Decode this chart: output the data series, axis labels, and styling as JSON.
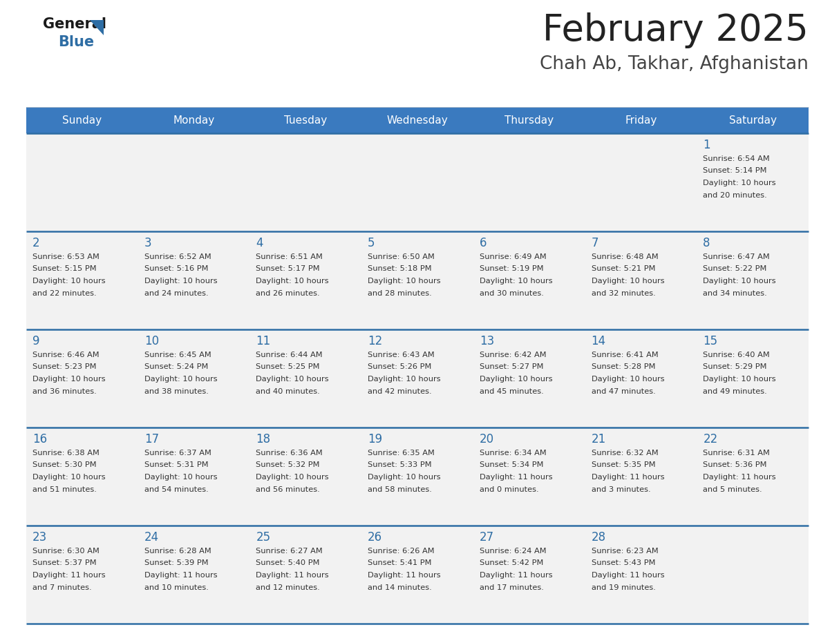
{
  "title": "February 2025",
  "subtitle": "Chah Ab, Takhar, Afghanistan",
  "header_bg": "#3a7abf",
  "header_text": "#ffffff",
  "day_names": [
    "Sunday",
    "Monday",
    "Tuesday",
    "Wednesday",
    "Thursday",
    "Friday",
    "Saturday"
  ],
  "title_color": "#222222",
  "subtitle_color": "#444444",
  "cell_bg": "#f2f2f2",
  "divider_color": "#2e6da4",
  "text_color": "#333333",
  "day_num_color": "#2e6da4",
  "logo_general_color": "#1a1a1a",
  "logo_blue_color": "#2e6da4",
  "logo_triangle_color": "#2e6da4",
  "calendar": [
    [
      {
        "day": null,
        "sunrise": null,
        "sunset": null,
        "daylight": null
      },
      {
        "day": null,
        "sunrise": null,
        "sunset": null,
        "daylight": null
      },
      {
        "day": null,
        "sunrise": null,
        "sunset": null,
        "daylight": null
      },
      {
        "day": null,
        "sunrise": null,
        "sunset": null,
        "daylight": null
      },
      {
        "day": null,
        "sunrise": null,
        "sunset": null,
        "daylight": null
      },
      {
        "day": null,
        "sunrise": null,
        "sunset": null,
        "daylight": null
      },
      {
        "day": 1,
        "sunrise": "6:54 AM",
        "sunset": "5:14 PM",
        "daylight": "10 hours and 20 minutes."
      }
    ],
    [
      {
        "day": 2,
        "sunrise": "6:53 AM",
        "sunset": "5:15 PM",
        "daylight": "10 hours and 22 minutes."
      },
      {
        "day": 3,
        "sunrise": "6:52 AM",
        "sunset": "5:16 PM",
        "daylight": "10 hours and 24 minutes."
      },
      {
        "day": 4,
        "sunrise": "6:51 AM",
        "sunset": "5:17 PM",
        "daylight": "10 hours and 26 minutes."
      },
      {
        "day": 5,
        "sunrise": "6:50 AM",
        "sunset": "5:18 PM",
        "daylight": "10 hours and 28 minutes."
      },
      {
        "day": 6,
        "sunrise": "6:49 AM",
        "sunset": "5:19 PM",
        "daylight": "10 hours and 30 minutes."
      },
      {
        "day": 7,
        "sunrise": "6:48 AM",
        "sunset": "5:21 PM",
        "daylight": "10 hours and 32 minutes."
      },
      {
        "day": 8,
        "sunrise": "6:47 AM",
        "sunset": "5:22 PM",
        "daylight": "10 hours and 34 minutes."
      }
    ],
    [
      {
        "day": 9,
        "sunrise": "6:46 AM",
        "sunset": "5:23 PM",
        "daylight": "10 hours and 36 minutes."
      },
      {
        "day": 10,
        "sunrise": "6:45 AM",
        "sunset": "5:24 PM",
        "daylight": "10 hours and 38 minutes."
      },
      {
        "day": 11,
        "sunrise": "6:44 AM",
        "sunset": "5:25 PM",
        "daylight": "10 hours and 40 minutes."
      },
      {
        "day": 12,
        "sunrise": "6:43 AM",
        "sunset": "5:26 PM",
        "daylight": "10 hours and 42 minutes."
      },
      {
        "day": 13,
        "sunrise": "6:42 AM",
        "sunset": "5:27 PM",
        "daylight": "10 hours and 45 minutes."
      },
      {
        "day": 14,
        "sunrise": "6:41 AM",
        "sunset": "5:28 PM",
        "daylight": "10 hours and 47 minutes."
      },
      {
        "day": 15,
        "sunrise": "6:40 AM",
        "sunset": "5:29 PM",
        "daylight": "10 hours and 49 minutes."
      }
    ],
    [
      {
        "day": 16,
        "sunrise": "6:38 AM",
        "sunset": "5:30 PM",
        "daylight": "10 hours and 51 minutes."
      },
      {
        "day": 17,
        "sunrise": "6:37 AM",
        "sunset": "5:31 PM",
        "daylight": "10 hours and 54 minutes."
      },
      {
        "day": 18,
        "sunrise": "6:36 AM",
        "sunset": "5:32 PM",
        "daylight": "10 hours and 56 minutes."
      },
      {
        "day": 19,
        "sunrise": "6:35 AM",
        "sunset": "5:33 PM",
        "daylight": "10 hours and 58 minutes."
      },
      {
        "day": 20,
        "sunrise": "6:34 AM",
        "sunset": "5:34 PM",
        "daylight": "11 hours and 0 minutes."
      },
      {
        "day": 21,
        "sunrise": "6:32 AM",
        "sunset": "5:35 PM",
        "daylight": "11 hours and 3 minutes."
      },
      {
        "day": 22,
        "sunrise": "6:31 AM",
        "sunset": "5:36 PM",
        "daylight": "11 hours and 5 minutes."
      }
    ],
    [
      {
        "day": 23,
        "sunrise": "6:30 AM",
        "sunset": "5:37 PM",
        "daylight": "11 hours and 7 minutes."
      },
      {
        "day": 24,
        "sunrise": "6:28 AM",
        "sunset": "5:39 PM",
        "daylight": "11 hours and 10 minutes."
      },
      {
        "day": 25,
        "sunrise": "6:27 AM",
        "sunset": "5:40 PM",
        "daylight": "11 hours and 12 minutes."
      },
      {
        "day": 26,
        "sunrise": "6:26 AM",
        "sunset": "5:41 PM",
        "daylight": "11 hours and 14 minutes."
      },
      {
        "day": 27,
        "sunrise": "6:24 AM",
        "sunset": "5:42 PM",
        "daylight": "11 hours and 17 minutes."
      },
      {
        "day": 28,
        "sunrise": "6:23 AM",
        "sunset": "5:43 PM",
        "daylight": "11 hours and 19 minutes."
      },
      {
        "day": null,
        "sunrise": null,
        "sunset": null,
        "daylight": null
      }
    ]
  ]
}
